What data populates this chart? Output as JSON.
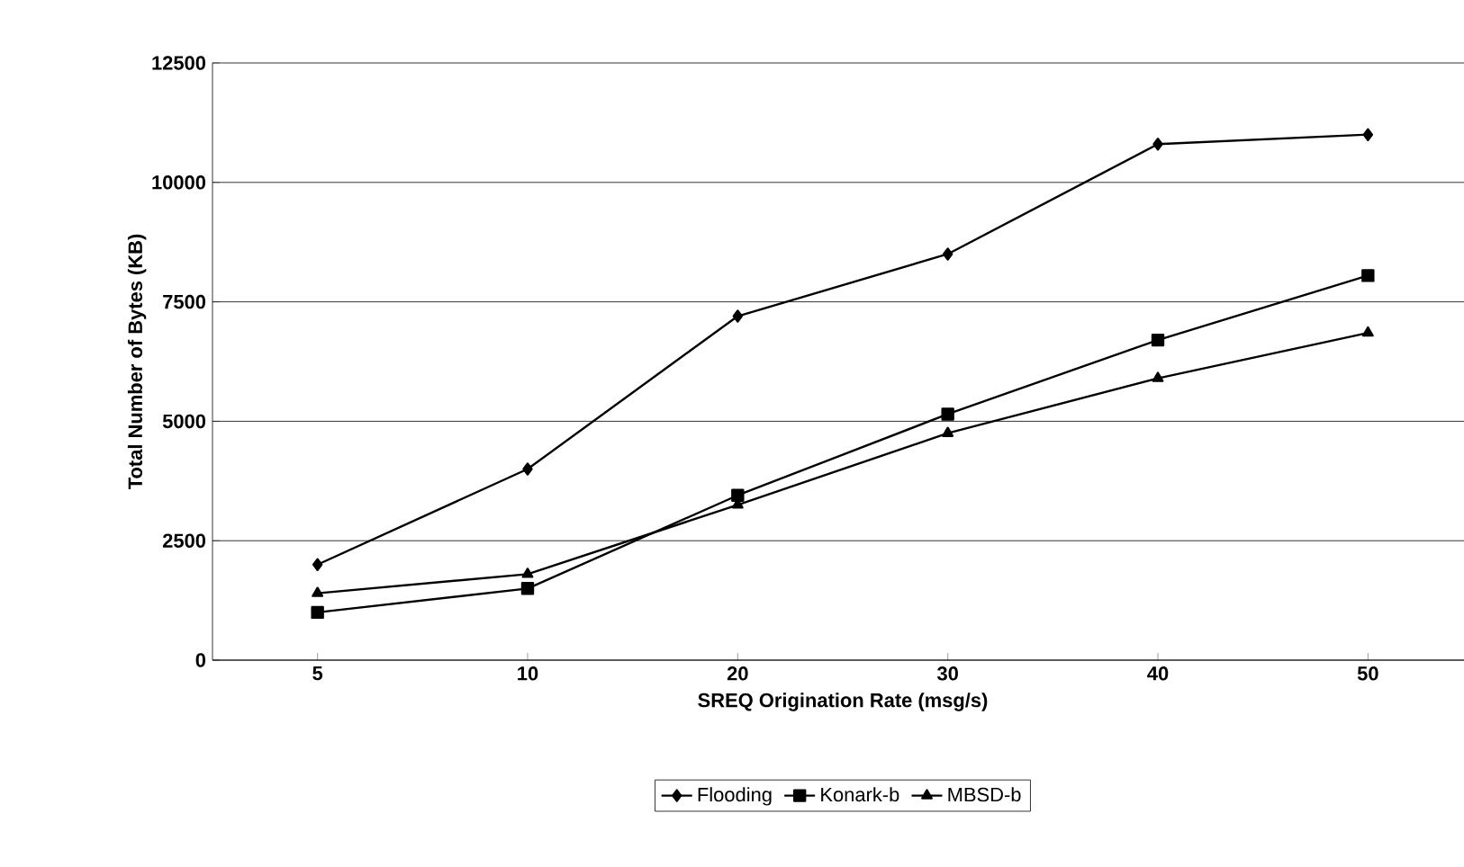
{
  "chart_data": {
    "type": "line",
    "xlabel": "SREQ Origination Rate (msg/s)",
    "ylabel": "Total Number of Bytes (KB)",
    "categories": [
      "5",
      "10",
      "20",
      "30",
      "40",
      "50"
    ],
    "series": [
      {
        "name": "Flooding",
        "color": "#000000",
        "marker": "diamond",
        "values": [
          2000,
          4000,
          7200,
          8500,
          10800,
          11000
        ]
      },
      {
        "name": "Konark-b",
        "color": "#000000",
        "marker": "square",
        "values": [
          1000,
          1500,
          3450,
          5150,
          6700,
          8050
        ]
      },
      {
        "name": "MBSD-b",
        "color": "#000000",
        "marker": "triangle",
        "values": [
          1400,
          1800,
          3250,
          4750,
          5900,
          6850
        ]
      }
    ],
    "ylim": [
      0,
      12500
    ],
    "yticks": [
      0,
      2500,
      5000,
      7500,
      10000,
      12500
    ],
    "grid": "y",
    "legend": "bottom",
    "line_style": "solid"
  }
}
